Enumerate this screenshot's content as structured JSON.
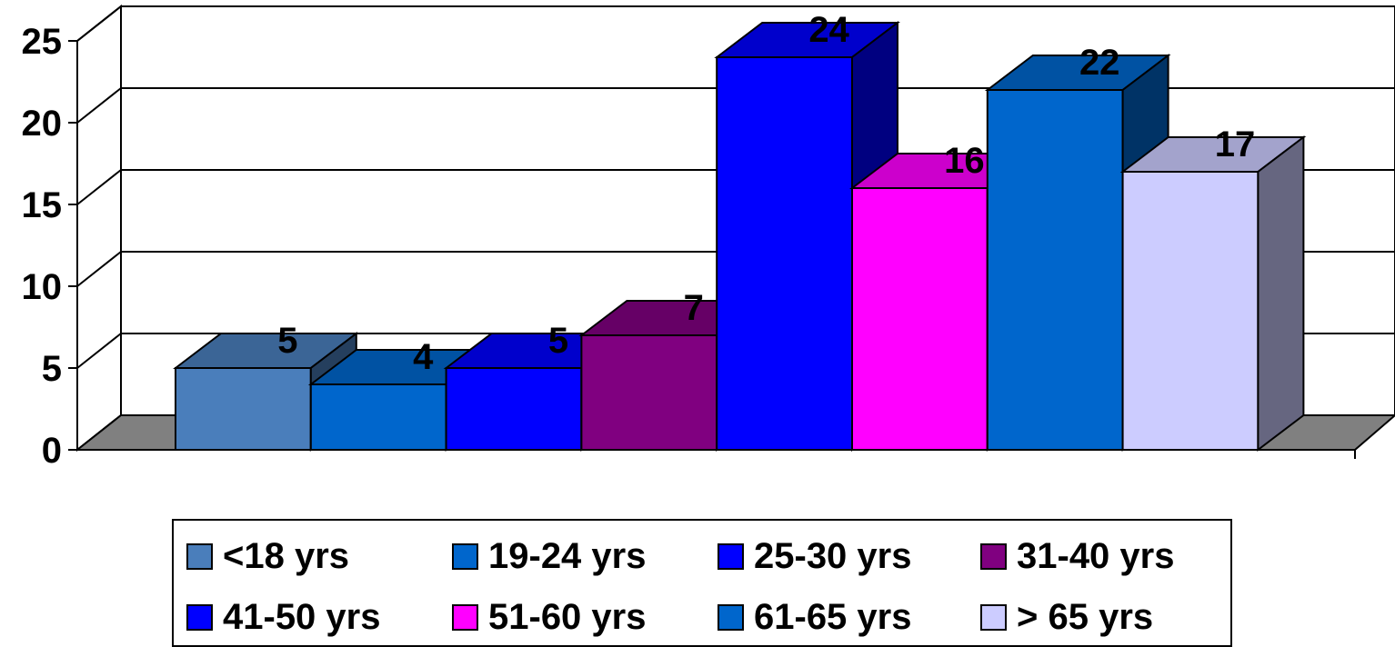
{
  "chart_data": {
    "type": "bar",
    "title": "",
    "xlabel": "",
    "ylabel": "",
    "ylim": [
      0,
      25
    ],
    "y_ticks": [
      "0",
      "5",
      "10",
      "15",
      "20",
      "25"
    ],
    "grid": true,
    "legend_position": "bottom",
    "style": "3d-clustered-column",
    "series": [
      {
        "name": "<18 yrs",
        "value": 5,
        "label": "5",
        "color": "#4A7EBB"
      },
      {
        "name": "19-24 yrs",
        "value": 4,
        "label": "4",
        "color": "#0066CC"
      },
      {
        "name": "25-30 yrs",
        "value": 5,
        "label": "5",
        "color": "#0000FF"
      },
      {
        "name": "31-40 yrs",
        "value": 7,
        "label": "7",
        "color": "#800080"
      },
      {
        "name": "41-50 yrs",
        "value": 24,
        "label": "24",
        "color": "#0000FF"
      },
      {
        "name": "51-60 yrs",
        "value": 16,
        "label": "16",
        "color": "#FF00FF"
      },
      {
        "name": "61-65 yrs",
        "value": 22,
        "label": "22",
        "color": "#0066CC"
      },
      {
        "name": "> 65 yrs",
        "value": 17,
        "label": "17",
        "color": "#CCCCFF"
      }
    ]
  }
}
